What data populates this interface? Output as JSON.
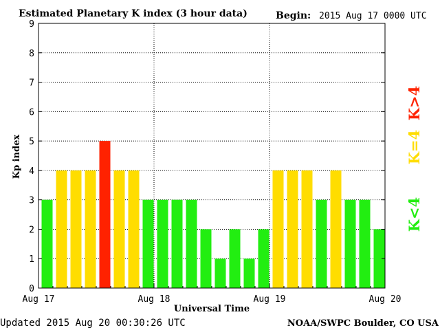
{
  "header": {
    "title": "Estimated Planetary K index (3 hour data)",
    "begin_label": "Begin:",
    "begin_value": "2015 Aug 17 0000 UTC"
  },
  "footer": {
    "updated": "Updated 2015 Aug 20 00:30:26 UTC",
    "source": "NOAA/SWPC Boulder, CO USA"
  },
  "legend": {
    "low": "K<4",
    "mid": "K=4",
    "high": "K>4"
  },
  "colors": {
    "low": "#22ee11",
    "mid": "#ffdd00",
    "high": "#ff2200",
    "background": "#ffffff",
    "grid": "#000000"
  },
  "chart_data": {
    "type": "bar",
    "title": "Estimated Planetary K index (3 hour data)",
    "xlabel": "Universal Time",
    "ylabel": "Kp index",
    "ylim": [
      0,
      9
    ],
    "yticks": [
      0,
      1,
      2,
      3,
      4,
      5,
      6,
      7,
      8,
      9
    ],
    "xticks": [
      "Aug 17",
      "Aug 18",
      "Aug 19",
      "Aug 20"
    ],
    "grid": true,
    "bars_per_day": 8,
    "values": [
      3,
      4,
      4,
      4,
      5,
      4,
      4,
      3,
      3,
      3,
      3,
      2,
      1,
      2,
      1,
      2,
      4,
      4,
      4,
      3,
      4,
      3,
      3,
      2
    ],
    "color_rule": "K<4 green, K=4 yellow, K>4 red"
  }
}
